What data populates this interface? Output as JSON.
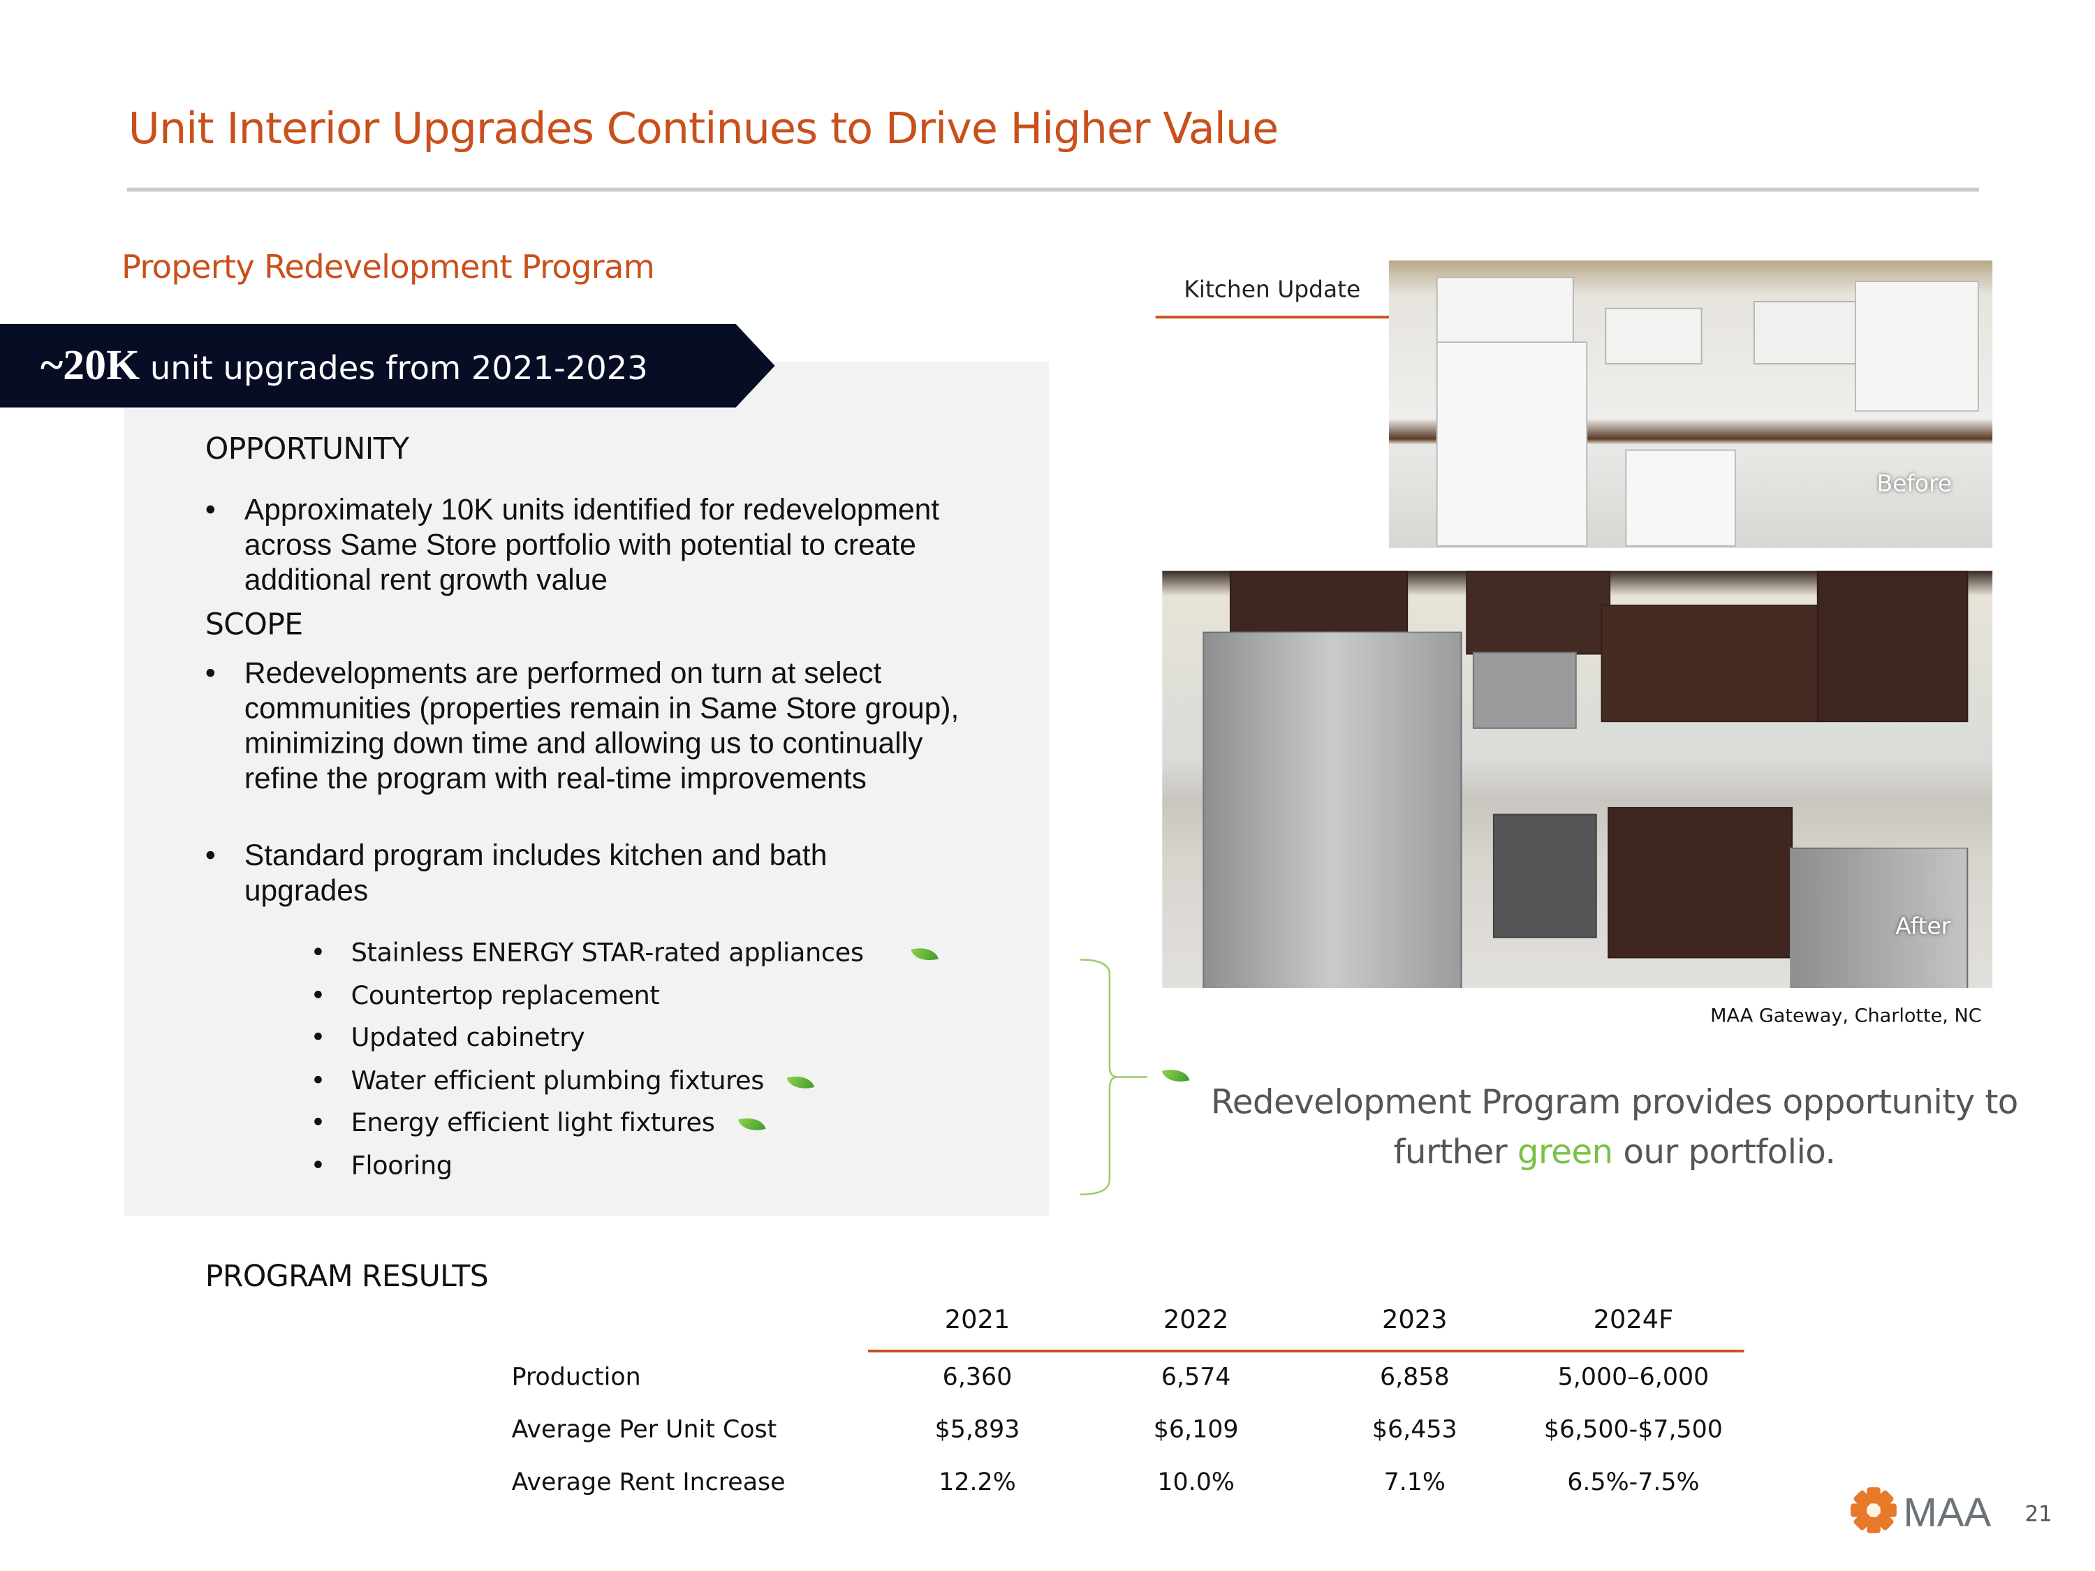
{
  "title": "Unit Interior Upgrades Continues to Drive Higher Value",
  "subtitle": "Property Redevelopment Program",
  "banner": {
    "highlight": "~20K",
    "text": " unit upgrades from 2021-2023"
  },
  "opportunity": {
    "heading": "OPPORTUNITY",
    "bullets": [
      "Approximately 10K units identified for redevelopment across Same Store portfolio with potential to create additional rent growth value"
    ]
  },
  "scope": {
    "heading": "SCOPE",
    "bullets": [
      "Redevelopments are performed on turn at select communities (properties remain in Same Store group), minimizing down time and allowing us to continually refine the program with real-time improvements",
      "Standard program includes kitchen and bath upgrades"
    ],
    "sub_items": [
      {
        "label": "Stainless ENERGY STAR-rated appliances",
        "icon": "leaf-icon"
      },
      {
        "label": "Countertop replacement"
      },
      {
        "label": "Updated cabinetry"
      },
      {
        "label": "Water efficient plumbing fixtures",
        "icon": "leaf-icon"
      },
      {
        "label": "Energy efficient light fixtures",
        "icon": "leaf-icon"
      },
      {
        "label": "Flooring"
      }
    ]
  },
  "photos": {
    "section_label": "Kitchen Update",
    "before_label": "Before",
    "after_label": "After",
    "caption": "MAA Gateway, Charlotte, NC"
  },
  "green_message": {
    "pre": "Redevelopment Program provides opportunity to further ",
    "green": "green",
    "post": " our portfolio.",
    "green_color": "#7ac143"
  },
  "results": {
    "heading": "PROGRAM RESULTS",
    "columns": [
      "2021",
      "2022",
      "2023",
      "2024F"
    ],
    "rows": [
      {
        "label": "Production",
        "values": [
          "6,360",
          "6,574",
          "6,858",
          "5,000–6,000"
        ]
      },
      {
        "label": "Average Per Unit Cost",
        "values": [
          "$5,893",
          "$6,109",
          "$6,453",
          "$6,500-$7,500"
        ]
      },
      {
        "label": "Average Rent Increase",
        "values": [
          "12.2%",
          "10.0%",
          "7.1%",
          "6.5%-7.5%"
        ]
      }
    ]
  },
  "footer": {
    "logo_text": "MAA",
    "page_number": "21"
  },
  "colors": {
    "accent": "#C9501C",
    "banner": "#070d24",
    "panel": "#f2f2f2",
    "logo_orange": "#E8782A",
    "logo_gray": "#6b7378"
  }
}
